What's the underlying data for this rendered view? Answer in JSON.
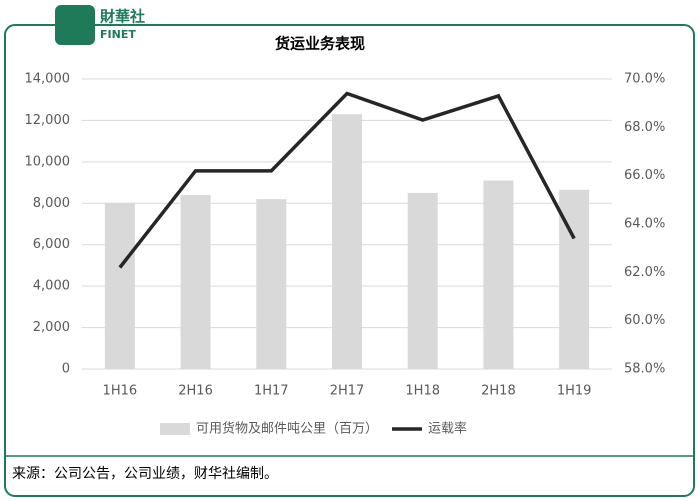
{
  "logo": {
    "name": "財華社",
    "sub": "FINET"
  },
  "chart_data": {
    "type": "bar",
    "title": "货运业务表现",
    "categories": [
      "1H16",
      "2H16",
      "1H17",
      "2H17",
      "1H18",
      "2H18",
      "1H19"
    ],
    "series": [
      {
        "name": "可用货物及邮件吨公里（百万）",
        "color": "#d9d9d9",
        "values": [
          8000,
          8400,
          8200,
          12300,
          8500,
          9100,
          8650
        ]
      },
      {
        "name": "运载率",
        "type": "line",
        "axis": "y2",
        "color": "#262626",
        "values": [
          62.2,
          66.2,
          66.2,
          69.4,
          68.3,
          69.3,
          63.4
        ]
      }
    ],
    "ylim": [
      0,
      14000
    ],
    "yticks": [
      0,
      {
        "value": 2000,
        "label": "2,000"
      },
      {
        "value": 4000,
        "label": "4,000"
      },
      {
        "value": 6000,
        "label": "6,000"
      },
      {
        "value": 8000,
        "label": "8,000"
      },
      {
        "value": 10000,
        "label": "10,000"
      },
      {
        "value": 12000,
        "label": "12,000"
      },
      {
        "value": 14000,
        "label": "14,000"
      }
    ],
    "y2lim": [
      58,
      70
    ],
    "y2ticks": [
      {
        "value": 58,
        "label": "58.0%"
      },
      {
        "value": 60,
        "label": "60.0%"
      },
      {
        "value": 62,
        "label": "62.0%"
      },
      {
        "value": 64,
        "label": "64.0%"
      },
      {
        "value": 66,
        "label": "66.0%"
      },
      {
        "value": 68,
        "label": "68.0%"
      },
      {
        "value": 70,
        "label": "70.0%"
      }
    ],
    "note": "来源：公司公告，公司业绩，财华社编制。"
  }
}
